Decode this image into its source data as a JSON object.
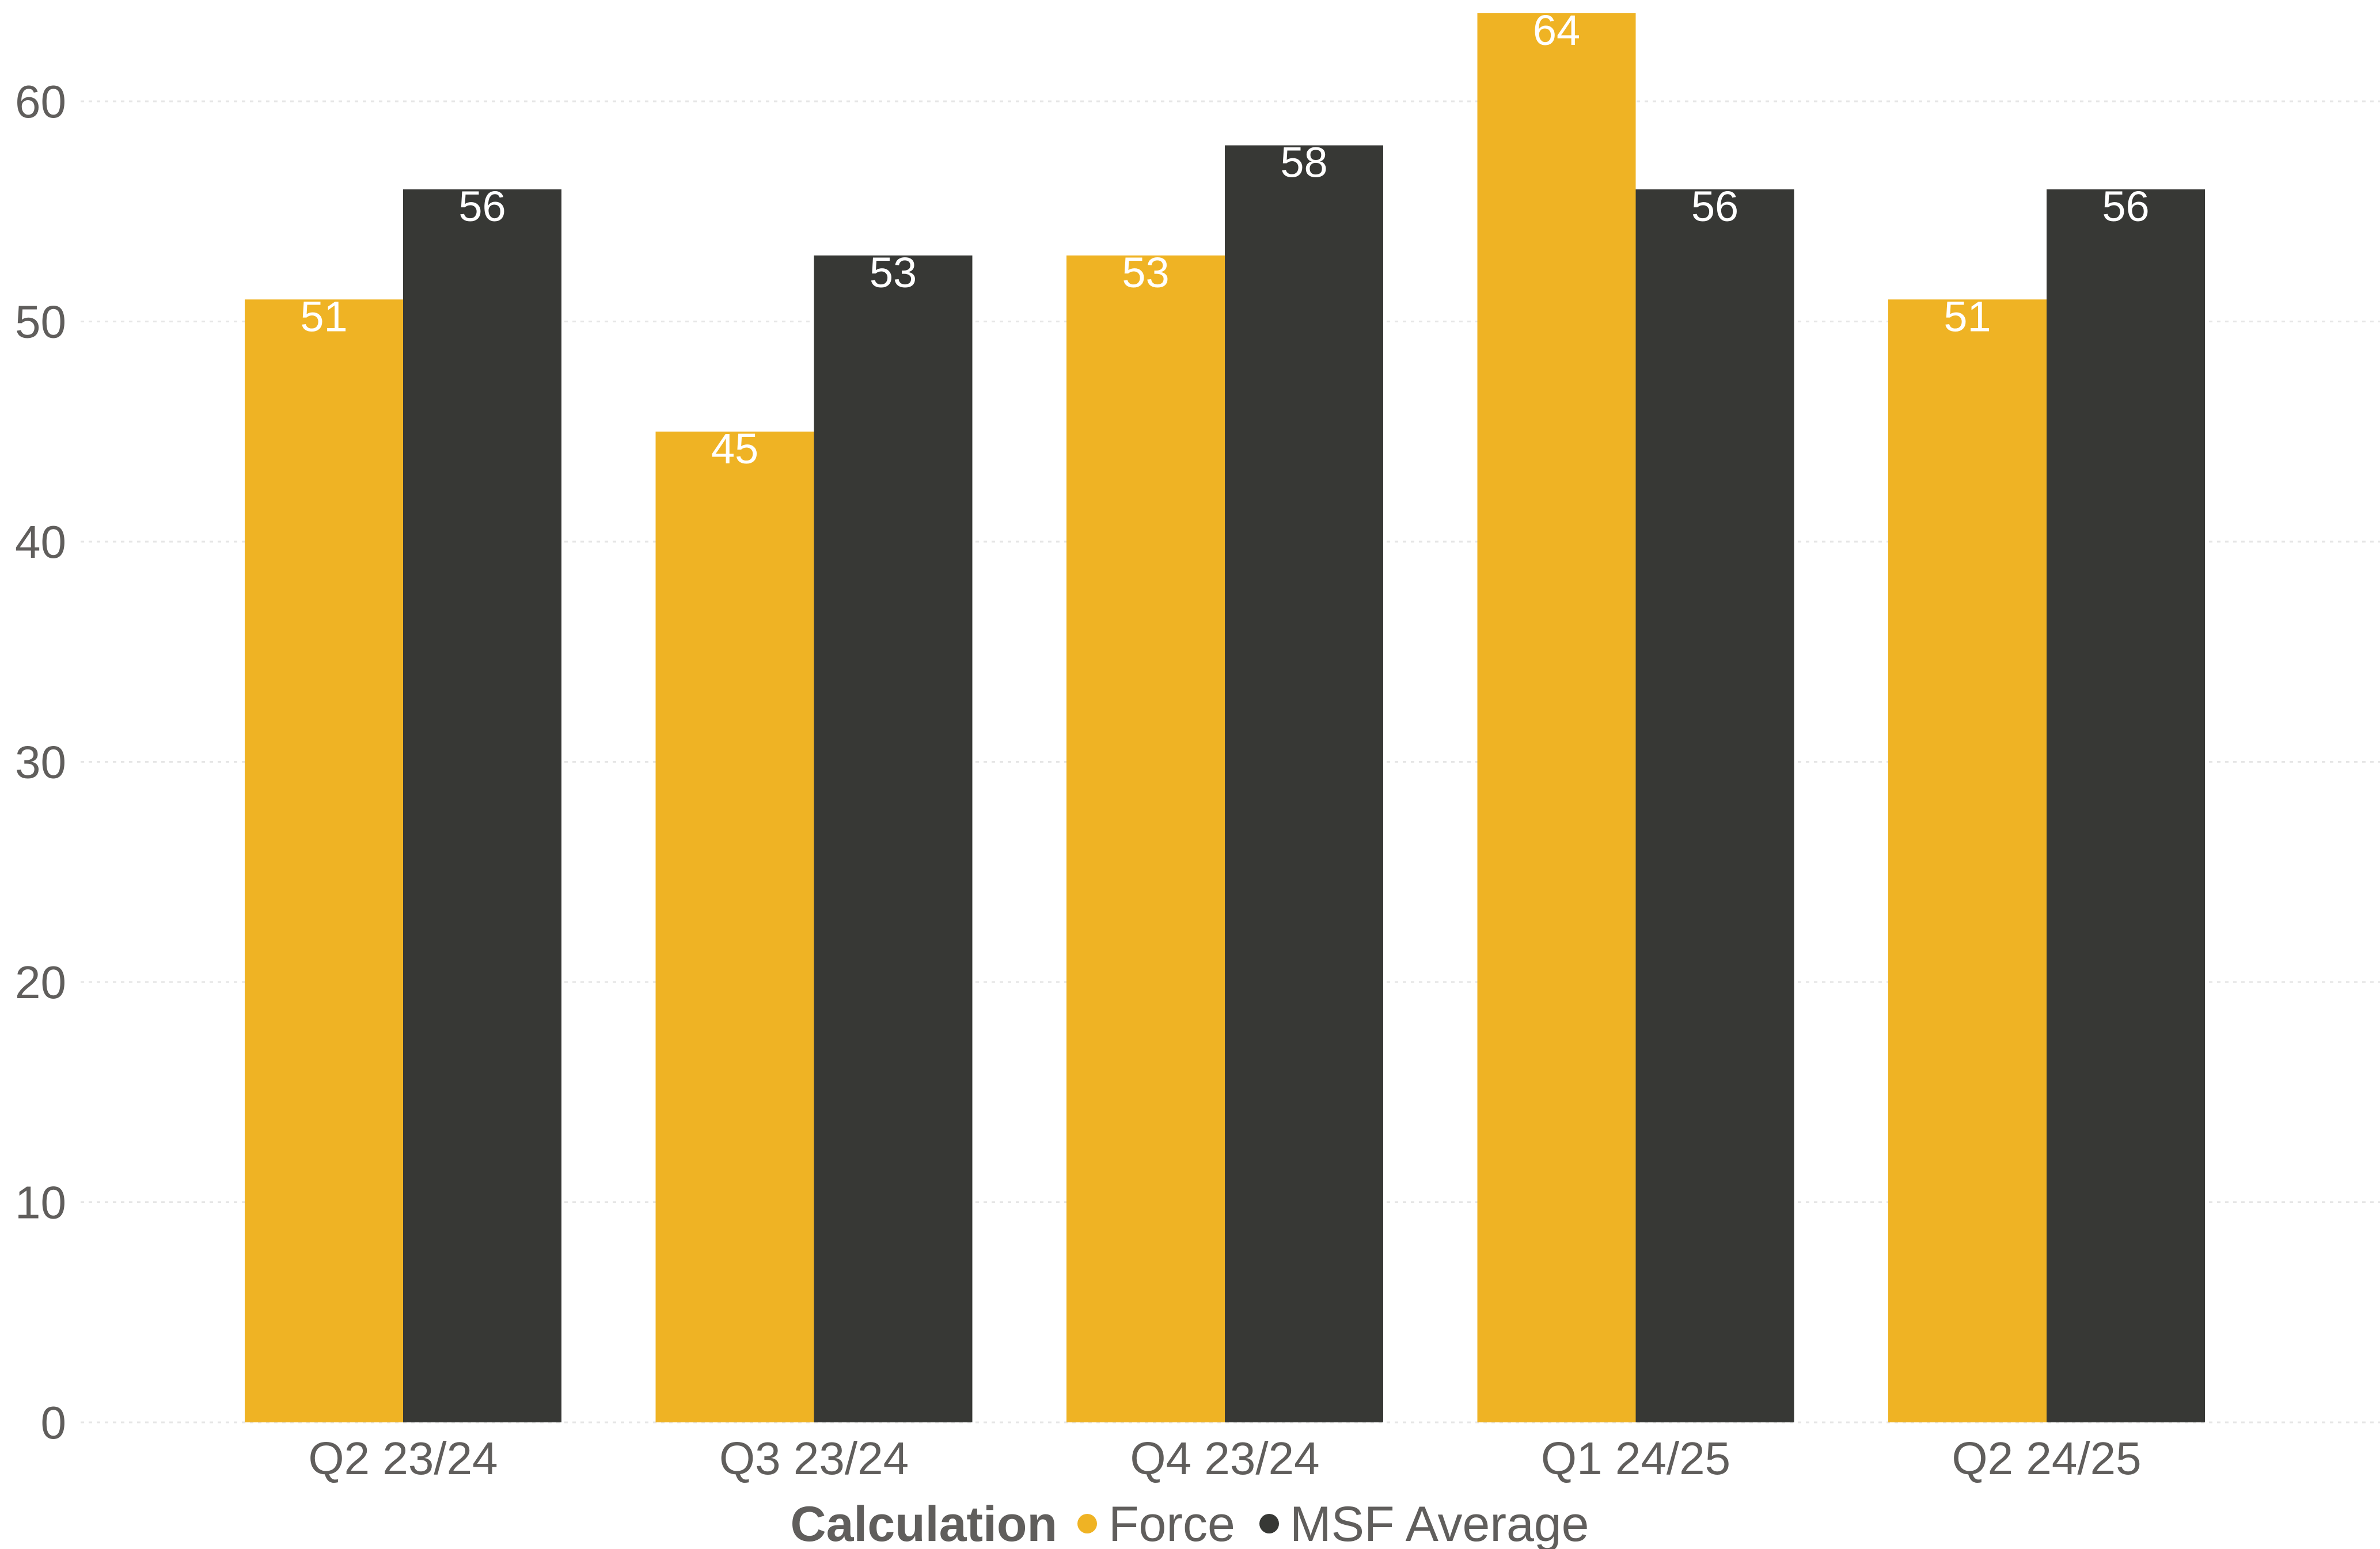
{
  "chart_data": {
    "type": "bar",
    "title": "",
    "xlabel": "",
    "ylabel": "",
    "categories": [
      "Q2 23/24",
      "Q3 23/24",
      "Q4 23/24",
      "Q1 24/25",
      "Q2 24/25"
    ],
    "series": [
      {
        "name": "Force",
        "values": [
          51,
          45,
          53,
          64,
          51
        ],
        "color": "#efb324"
      },
      {
        "name": "MSF Average",
        "values": [
          56,
          53,
          58,
          56,
          56
        ],
        "color": "#373835"
      }
    ],
    "data_labels": [
      [
        "51",
        "45",
        "53",
        "64",
        "51"
      ],
      [
        "56",
        "53",
        "58",
        "56",
        "56"
      ]
    ],
    "ylim": [
      0,
      64
    ],
    "yticks": [
      0,
      10,
      20,
      30,
      40,
      50,
      60
    ],
    "ytick_labels": [
      "0",
      "10",
      "20",
      "30",
      "40",
      "50",
      "60"
    ],
    "grid": true,
    "legend": {
      "title": "Calculation",
      "placement": "bottom-center",
      "items": [
        "Force",
        "MSF Average"
      ]
    }
  }
}
